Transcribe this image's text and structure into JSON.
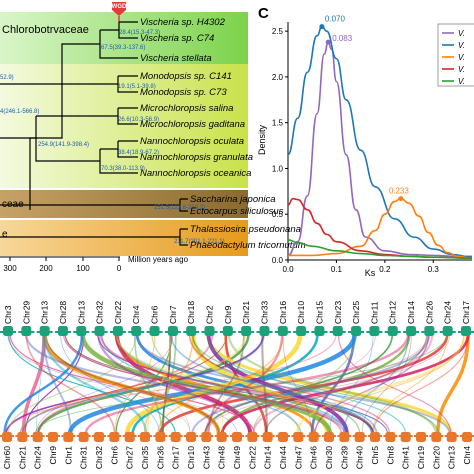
{
  "panel_a": {
    "clades": [
      {
        "label": "Chlorobotrvaceae",
        "color": "#7cd34a",
        "color2": "#d9f5c8"
      },
      {
        "label": "",
        "color": "#c9e24a",
        "color2": "#f3fadf"
      },
      {
        "label": "ceae",
        "color": "#8a6a2e",
        "color2": "#c7a266"
      },
      {
        "label": "e",
        "color": "#e69a1c",
        "color2": "#f8d79a"
      }
    ],
    "wgd_label": "WGD",
    "species": [
      "Vischeria sp. H4302",
      "Vischeria sp. C74",
      "Vischeria stellata",
      "Monodopsis sp. C141",
      "Monodopsis sp. C73",
      "Microchloropsis salina",
      "Microchloropsis gaditana",
      "Nannochloropsis oculata",
      "Nannochloropsis granulata",
      "Nannochloropsis oceanica",
      "Saccharina japonica",
      "Ectocarpus siliculosus",
      "Thalassiosira pseudonana",
      "Phaeodactylum tricornutum"
    ],
    "node_labels": [
      "28.4(15.3-47.3)",
      "67.5(39.3-137.6)",
      "52.9)",
      "19.1(5.1-39.8)",
      "4(246.1-566.8)",
      "26.6(10.3-56.9)",
      "254.9(141.9-398.4)",
      "38.4(18.9-67.2)",
      "70.3(38.0-113.9)",
      "151.5(123.8-210.2)",
      "211.7(201.1-221.1)"
    ],
    "axis_ticks": [
      "300",
      "200",
      "100",
      "0"
    ],
    "axis_label": "Million years ago"
  },
  "panel_c": {
    "letter": "C",
    "chart_data": {
      "type": "line",
      "xlabel": "Ks",
      "ylabel": "Density",
      "xlim": [
        0.0,
        0.38
      ],
      "ylim": [
        0.0,
        2.6
      ],
      "xticks": [
        "0.0",
        "0.1",
        "0.2",
        "0.3"
      ],
      "yticks": [
        "0.0",
        "0.5",
        "1.0",
        "1.5",
        "2.0",
        "2.5"
      ],
      "legend_position": "top-right",
      "series": [
        {
          "name": "V.",
          "color": "#9467bd",
          "peak_label": "0.083",
          "points": [
            [
              0.0,
              0.05
            ],
            [
              0.02,
              0.2
            ],
            [
              0.04,
              0.7
            ],
            [
              0.06,
              1.6
            ],
            [
              0.075,
              2.25
            ],
            [
              0.083,
              2.38
            ],
            [
              0.09,
              2.3
            ],
            [
              0.1,
              1.95
            ],
            [
              0.12,
              1.15
            ],
            [
              0.14,
              0.55
            ],
            [
              0.16,
              0.25
            ],
            [
              0.2,
              0.1
            ],
            [
              0.25,
              0.06
            ],
            [
              0.3,
              0.05
            ],
            [
              0.35,
              0.04
            ],
            [
              0.38,
              0.04
            ]
          ]
        },
        {
          "name": "V.",
          "color": "#1f77b4",
          "peak_label": "0.070",
          "points": [
            [
              0.0,
              1.15
            ],
            [
              0.02,
              1.55
            ],
            [
              0.04,
              2.05
            ],
            [
              0.06,
              2.45
            ],
            [
              0.07,
              2.55
            ],
            [
              0.08,
              2.5
            ],
            [
              0.1,
              2.2
            ],
            [
              0.12,
              1.75
            ],
            [
              0.15,
              1.2
            ],
            [
              0.18,
              0.8
            ],
            [
              0.22,
              0.45
            ],
            [
              0.26,
              0.25
            ],
            [
              0.3,
              0.12
            ],
            [
              0.34,
              0.06
            ],
            [
              0.38,
              0.03
            ]
          ]
        },
        {
          "name": "V.",
          "color": "#ff7f0e",
          "peak_label": "0.233",
          "points": [
            [
              0.0,
              0.05
            ],
            [
              0.05,
              0.05
            ],
            [
              0.1,
              0.07
            ],
            [
              0.15,
              0.15
            ],
            [
              0.18,
              0.32
            ],
            [
              0.2,
              0.5
            ],
            [
              0.22,
              0.64
            ],
            [
              0.233,
              0.67
            ],
            [
              0.25,
              0.62
            ],
            [
              0.27,
              0.48
            ],
            [
              0.29,
              0.3
            ],
            [
              0.31,
              0.16
            ],
            [
              0.33,
              0.08
            ],
            [
              0.35,
              0.04
            ],
            [
              0.38,
              0.02
            ]
          ]
        },
        {
          "name": "V.",
          "color": "#d62728",
          "peak_label": "",
          "points": [
            [
              0.0,
              0.6
            ],
            [
              0.01,
              0.67
            ],
            [
              0.02,
              0.66
            ],
            [
              0.04,
              0.55
            ],
            [
              0.06,
              0.4
            ],
            [
              0.08,
              0.28
            ],
            [
              0.1,
              0.2
            ],
            [
              0.15,
              0.1
            ],
            [
              0.2,
              0.06
            ],
            [
              0.25,
              0.04
            ],
            [
              0.3,
              0.03
            ],
            [
              0.38,
              0.02
            ]
          ]
        },
        {
          "name": "V.",
          "color": "#2ca02c",
          "peak_label": "",
          "points": [
            [
              0.0,
              0.22
            ],
            [
              0.02,
              0.19
            ],
            [
              0.05,
              0.15
            ],
            [
              0.1,
              0.1
            ],
            [
              0.15,
              0.07
            ],
            [
              0.2,
              0.05
            ],
            [
              0.25,
              0.04
            ],
            [
              0.3,
              0.03
            ],
            [
              0.38,
              0.02
            ]
          ]
        }
      ]
    }
  },
  "panel_d": {
    "top_chromosomes": [
      "Chr3",
      "Chr29",
      "Chr13",
      "Chr28",
      "Chr13",
      "Chr32",
      "Chr22",
      "Chr4",
      "Chr6",
      "Chr7",
      "Chr18",
      "Chr2",
      "Chr9",
      "Chr21",
      "Chr33",
      "Chr16",
      "Chr10",
      "Chr15",
      "Chr23",
      "Chr25",
      "Chr11",
      "Chr12",
      "Chr14",
      "Chr26",
      "Chr24",
      "Chr17"
    ],
    "bottom_chromosomes": [
      "Chr60",
      "Chr21",
      "Chr24",
      "Chr9",
      "Chr1",
      "Chr31",
      "Chr32",
      "Chr6",
      "Chr27",
      "Chr35",
      "Chr36",
      "Chr17",
      "Chr10",
      "Chr43",
      "Chr48",
      "Chr49",
      "Chr22",
      "Chr14",
      "Chr44",
      "Chr47",
      "Chr46",
      "Chr30",
      "Chr39",
      "Chr40",
      "Chr5",
      "Chr8",
      "Chr41",
      "Chr19",
      "Chr20",
      "Chr13",
      "Chr4"
    ],
    "top_color": "#1aa37a",
    "bottom_color": "#e8772e",
    "link_colors": [
      "#e53935",
      "#43a047",
      "#1e88e5",
      "#fb8c00",
      "#8e24aa",
      "#fdd835",
      "#00acc1",
      "#d81b60",
      "#6d4c41",
      "#7cb342",
      "#5c6bc0",
      "#f06292"
    ]
  }
}
